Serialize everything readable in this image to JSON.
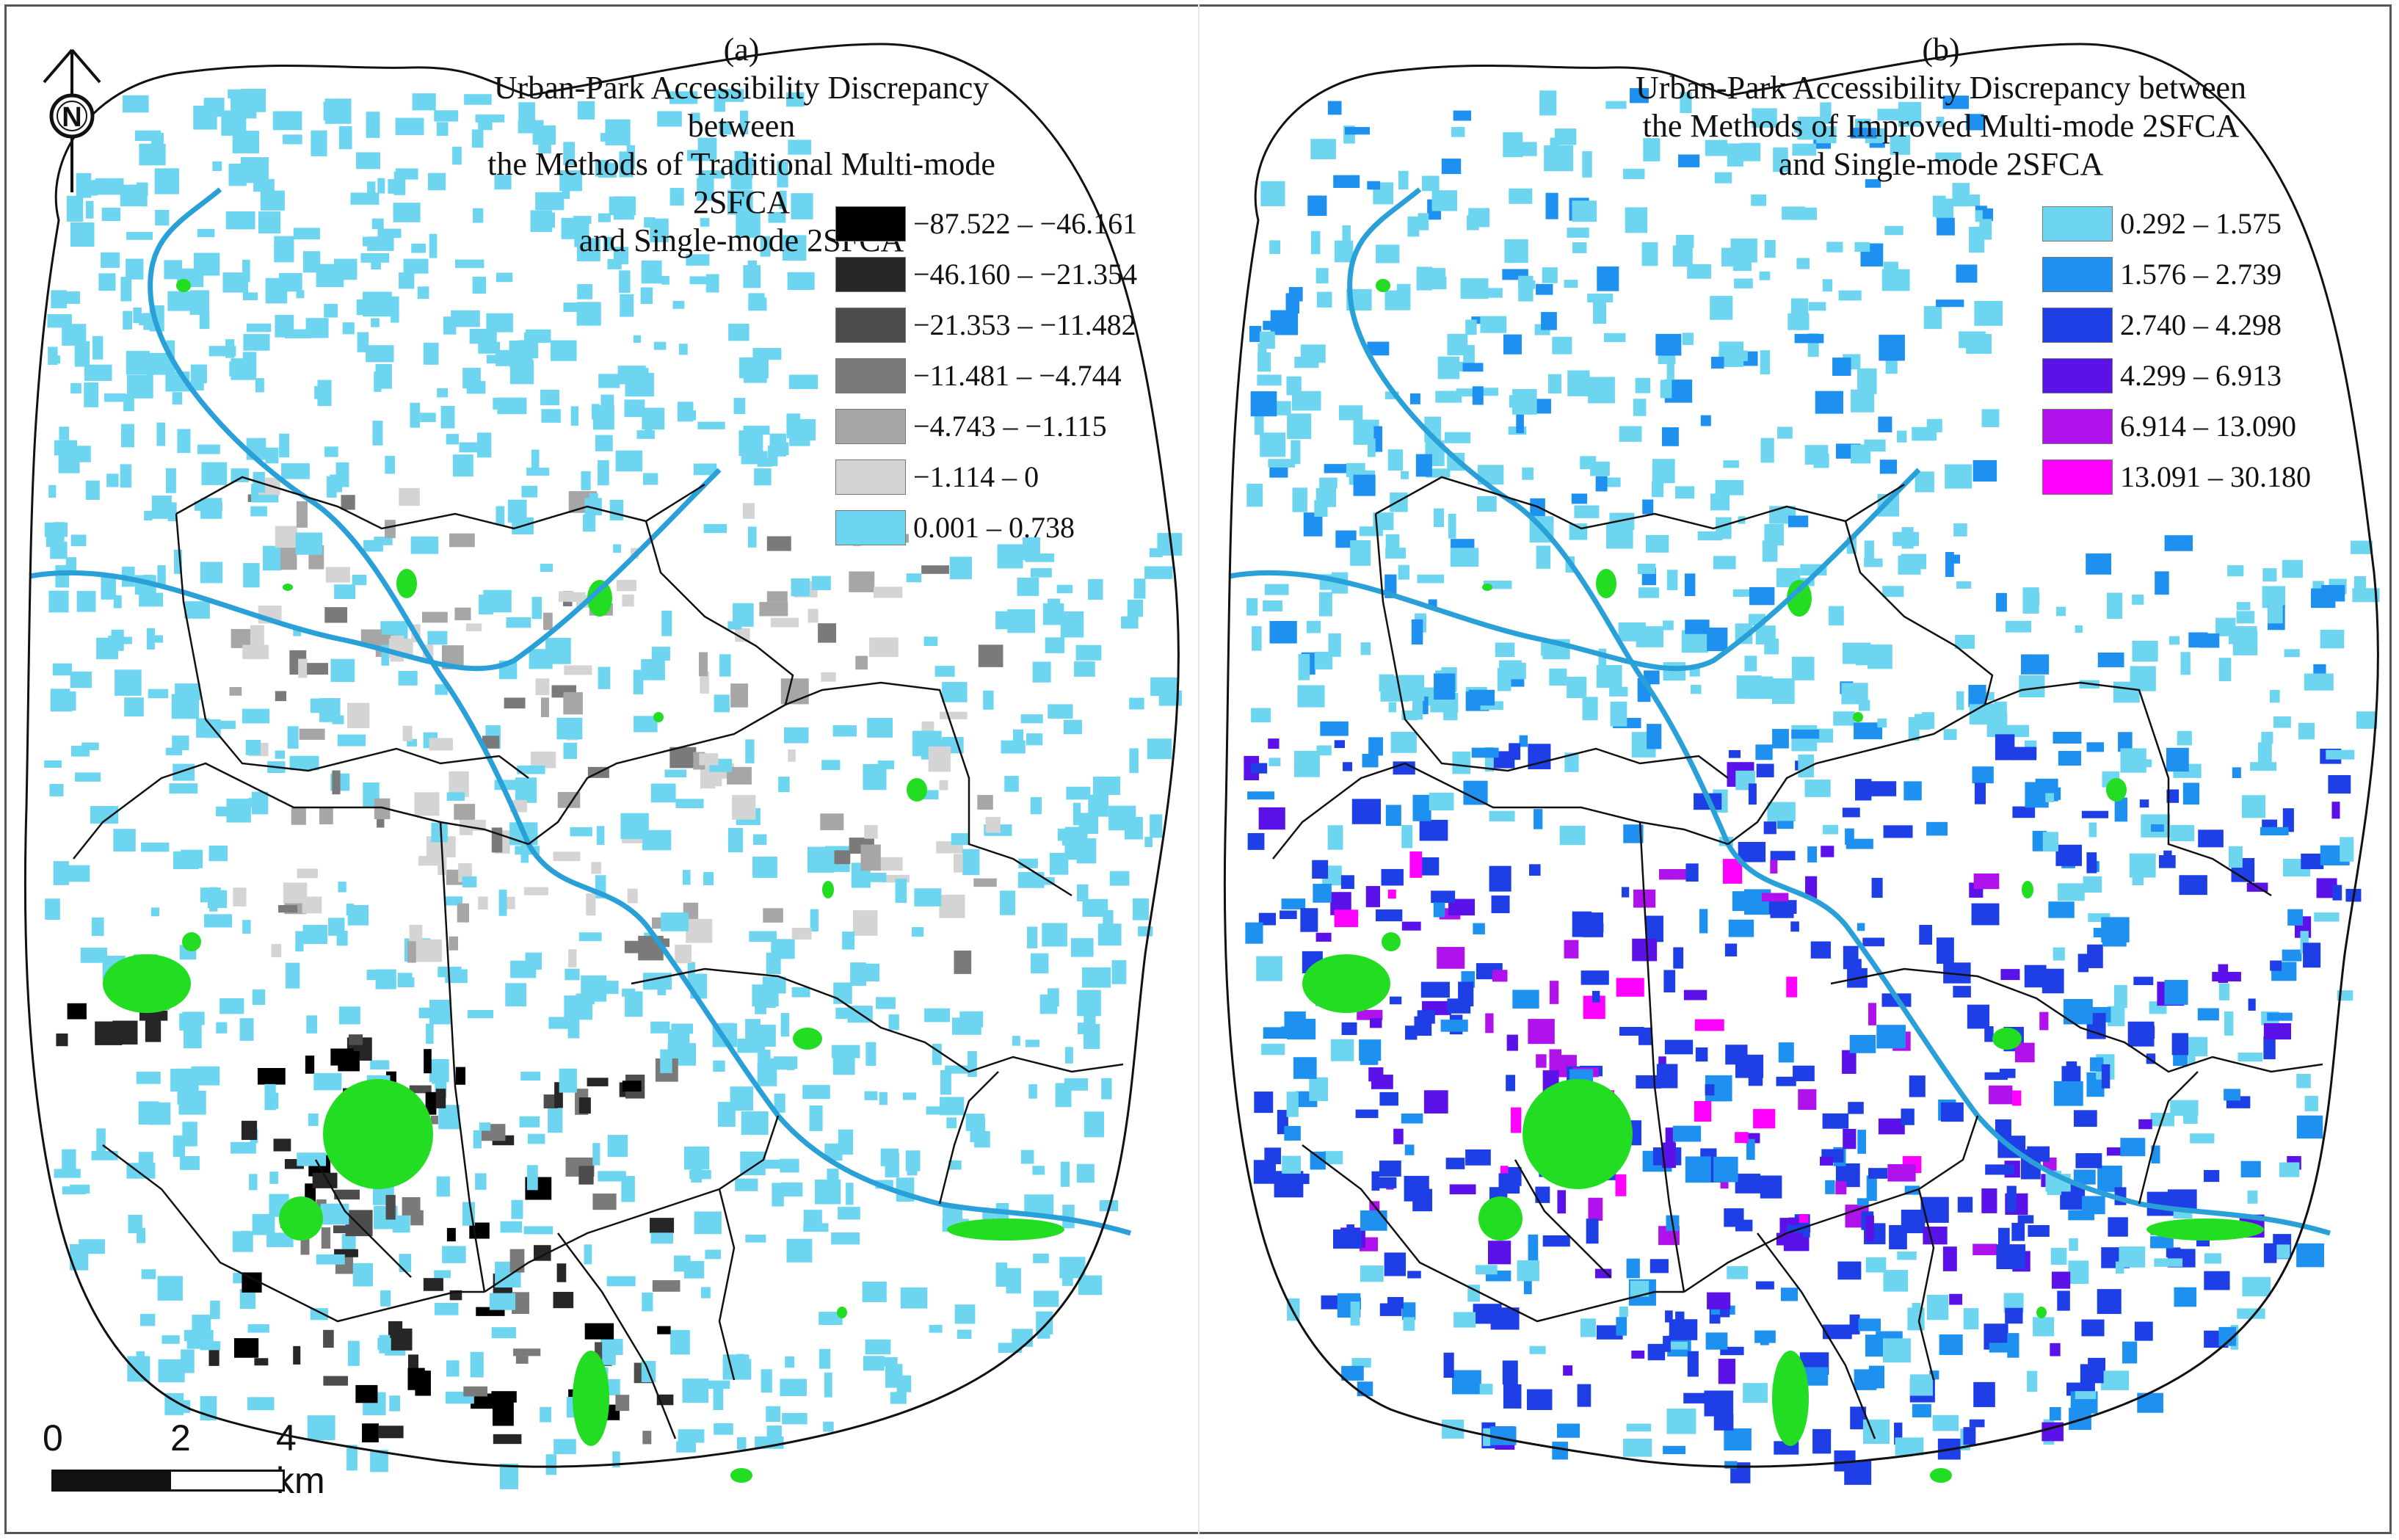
{
  "panels": [
    {
      "id": "a",
      "label": "(a)",
      "title_lines": [
        "Urban-Park Accessibility Discrepancy between",
        "the Methods of Traditional Multi-mode 2SFCA",
        "and Single-mode 2SFCA"
      ],
      "legend": [
        {
          "label": "−87.522 – −46.161",
          "color": "#000000"
        },
        {
          "label": "−46.160 – −21.354",
          "color": "#262626"
        },
        {
          "label": "−21.353 – −11.482",
          "color": "#4d4d4d"
        },
        {
          "label": "−11.481 – −4.744",
          "color": "#7a7a7a"
        },
        {
          "label": "−4.743 – −1.115",
          "color": "#a6a6a6"
        },
        {
          "label": "−1.114 – 0",
          "color": "#d4d4d4"
        },
        {
          "label": "0.001 – 0.738",
          "color": "#6dd5ef"
        }
      ]
    },
    {
      "id": "b",
      "label": "(b)",
      "title_lines": [
        "Urban-Park Accessibility Discrepancy between",
        "the Methods of Improved Multi-mode 2SFCA",
        "and Single-mode 2SFCA"
      ],
      "legend": [
        {
          "label": "0.292 – 1.575",
          "color": "#6dd5ef"
        },
        {
          "label": "1.576 – 2.739",
          "color": "#1e90ef"
        },
        {
          "label": "2.740 – 4.298",
          "color": "#1f3fe6"
        },
        {
          "label": "4.299 – 6.913",
          "color": "#5b12e8"
        },
        {
          "label": "6.914 – 13.090",
          "color": "#b012ec"
        },
        {
          "label": "13.091 – 30.180",
          "color": "#ff00ff"
        }
      ]
    }
  ],
  "north_arrow": {
    "letter": "N"
  },
  "scale_bar": {
    "ticks": [
      "0",
      "2",
      "4 km"
    ]
  },
  "colors": {
    "park": "#22dd22",
    "river": "#2aa0d8",
    "boundary": "#111111"
  }
}
